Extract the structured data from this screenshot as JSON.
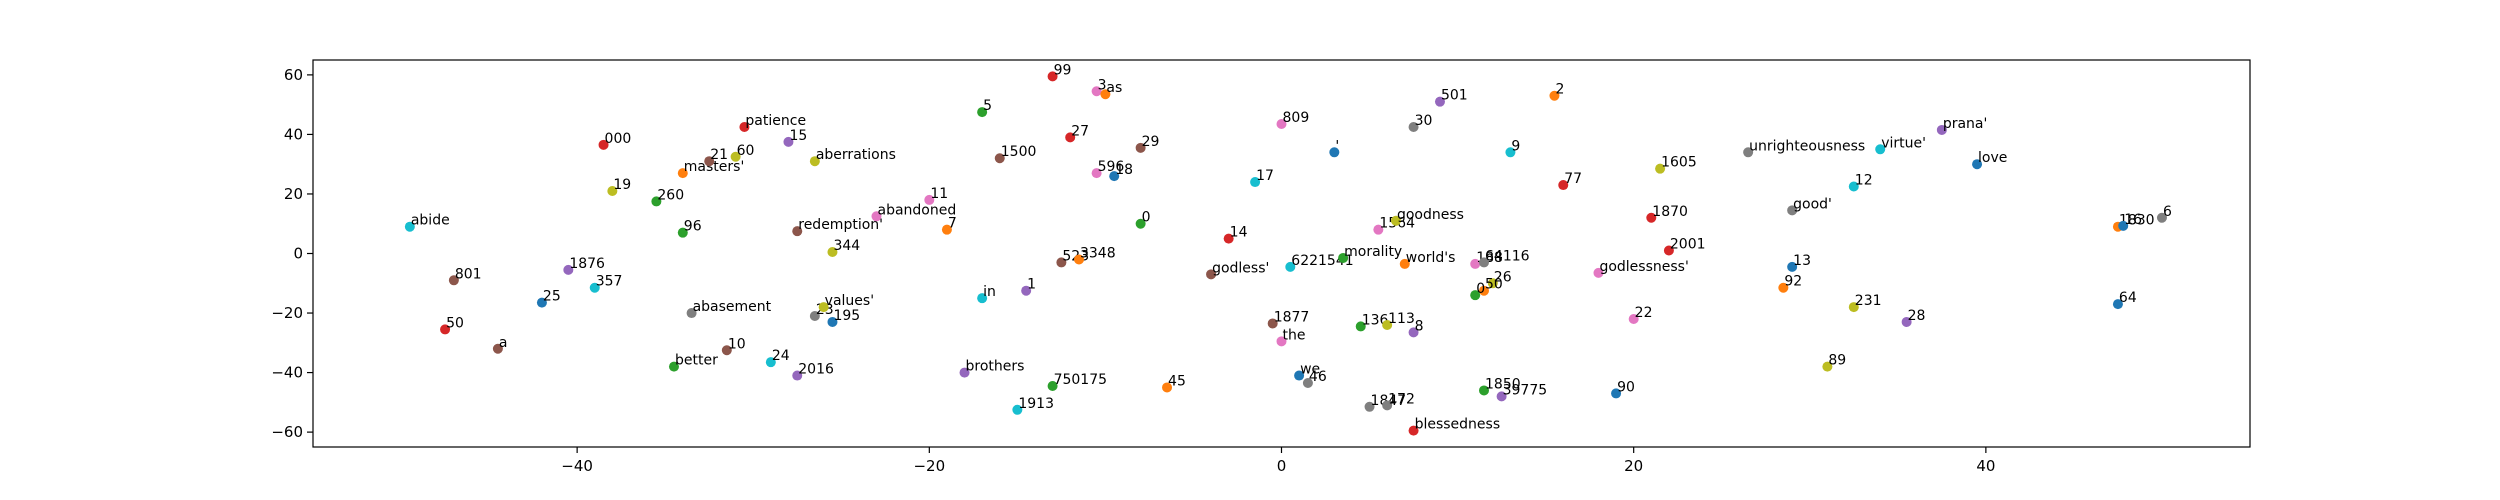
{
  "chart_data": {
    "type": "scatter",
    "title": "",
    "xlabel": "",
    "ylabel": "",
    "xlim": [
      -55,
      55
    ],
    "ylim": [
      -65,
      65
    ],
    "xticks": [
      "−40",
      "−20",
      "0",
      "20",
      "40"
    ],
    "xtick_values": [
      -40,
      -20,
      0,
      20,
      40
    ],
    "yticks": [
      "−60",
      "−40",
      "−20",
      "0",
      "20",
      "40",
      "60"
    ],
    "ytick_values": [
      -60,
      -40,
      -20,
      0,
      20,
      40,
      60
    ],
    "grid": false,
    "palette": [
      "#1f77b4",
      "#ff7f0e",
      "#2ca02c",
      "#d62728",
      "#9467bd",
      "#8c564b",
      "#e377c2",
      "#7f7f7f",
      "#bcbd22",
      "#17becf"
    ],
    "points": [
      {
        "label": "abide",
        "x": -49.5,
        "y": 9,
        "c": 9
      },
      {
        "label": "801",
        "x": -47,
        "y": -9,
        "c": 5
      },
      {
        "label": "50",
        "x": -47.5,
        "y": -25.5,
        "c": 3
      },
      {
        "label": "a",
        "x": -44.5,
        "y": -32,
        "c": 5
      },
      {
        "label": "25",
        "x": -42,
        "y": -16.5,
        "c": 0
      },
      {
        "label": "1876",
        "x": -40.5,
        "y": -5.5,
        "c": 4
      },
      {
        "label": "357",
        "x": -39,
        "y": -11.5,
        "c": 9
      },
      {
        "label": "000",
        "x": -38.5,
        "y": 36.5,
        "c": 3
      },
      {
        "label": "19",
        "x": -38,
        "y": 21,
        "c": 8
      },
      {
        "label": "260",
        "x": -35.5,
        "y": 17.5,
        "c": 2
      },
      {
        "label": "96",
        "x": -34,
        "y": 7,
        "c": 2
      },
      {
        "label": "masters'",
        "x": -34,
        "y": 27,
        "c": 1
      },
      {
        "label": "21",
        "x": -32.5,
        "y": 31,
        "c": 5
      },
      {
        "label": "abasement",
        "x": -33.5,
        "y": -20,
        "c": 7
      },
      {
        "label": "better",
        "x": -34.5,
        "y": -38,
        "c": 2
      },
      {
        "label": "60",
        "x": -31,
        "y": 32.5,
        "c": 8
      },
      {
        "label": "patience",
        "x": -30.5,
        "y": 42.5,
        "c": 3
      },
      {
        "label": "10",
        "x": -31.5,
        "y": -32.5,
        "c": 5
      },
      {
        "label": "15",
        "x": -28,
        "y": 37.5,
        "c": 4
      },
      {
        "label": "24",
        "x": -29,
        "y": -36.5,
        "c": 9
      },
      {
        "label": "2016",
        "x": -27.5,
        "y": -41,
        "c": 4
      },
      {
        "label": "redemption'",
        "x": -27.5,
        "y": 7.5,
        "c": 5
      },
      {
        "label": "aberrations",
        "x": -26.5,
        "y": 31,
        "c": 8
      },
      {
        "label": "23",
        "x": -26.5,
        "y": -21,
        "c": 7
      },
      {
        "label": "values'",
        "x": -26,
        "y": -18,
        "c": 8
      },
      {
        "label": "195",
        "x": -25.5,
        "y": -23,
        "c": 0
      },
      {
        "label": "344",
        "x": -25.5,
        "y": 0.5,
        "c": 8
      },
      {
        "label": "abandoned",
        "x": -23,
        "y": 12.5,
        "c": 6
      },
      {
        "label": "11",
        "x": -20,
        "y": 18,
        "c": 6
      },
      {
        "label": "7",
        "x": -19,
        "y": 8,
        "c": 1
      },
      {
        "label": "brothers",
        "x": -18,
        "y": -40,
        "c": 4
      },
      {
        "label": "5",
        "x": -17,
        "y": 47.5,
        "c": 2
      },
      {
        "label": "1500",
        "x": -16,
        "y": 32,
        "c": 5
      },
      {
        "label": "in",
        "x": -17,
        "y": -15,
        "c": 9
      },
      {
        "label": "1913",
        "x": -15,
        "y": -52.5,
        "c": 9
      },
      {
        "label": "1",
        "x": -14.5,
        "y": -12.5,
        "c": 4
      },
      {
        "label": "99",
        "x": -13,
        "y": 59.5,
        "c": 3
      },
      {
        "label": "750175",
        "x": -13,
        "y": -44.5,
        "c": 2
      },
      {
        "label": "523",
        "x": -12.5,
        "y": -3,
        "c": 5
      },
      {
        "label": "3348",
        "x": -11.5,
        "y": -2,
        "c": 1
      },
      {
        "label": "27",
        "x": -12,
        "y": 39,
        "c": 3
      },
      {
        "label": "3",
        "x": -10.5,
        "y": 54.5,
        "c": 6
      },
      {
        "label": "as",
        "x": -10,
        "y": 53.5,
        "c": 1
      },
      {
        "label": "596",
        "x": -10.5,
        "y": 27,
        "c": 6
      },
      {
        "label": "18",
        "x": -9.5,
        "y": 26,
        "c": 0
      },
      {
        "label": "29",
        "x": -8,
        "y": 35.5,
        "c": 5
      },
      {
        "label": "0",
        "x": -8,
        "y": 10,
        "c": 2
      },
      {
        "label": "45",
        "x": -6.5,
        "y": -45,
        "c": 1
      },
      {
        "label": "godless'",
        "x": -4,
        "y": -7,
        "c": 5
      },
      {
        "label": "14",
        "x": -3,
        "y": 5,
        "c": 3
      },
      {
        "label": "1877",
        "x": -0.5,
        "y": -23.5,
        "c": 5
      },
      {
        "label": "the",
        "x": 0,
        "y": -29.5,
        "c": 6
      },
      {
        "label": "809",
        "x": 0,
        "y": 43.5,
        "c": 6
      },
      {
        "label": "17",
        "x": -1.5,
        "y": 24,
        "c": 9
      },
      {
        "label": "6221541",
        "x": 0.5,
        "y": -4.5,
        "c": 9
      },
      {
        "label": "we",
        "x": 1,
        "y": -41,
        "c": 0
      },
      {
        "label": "46",
        "x": 1.5,
        "y": -43.5,
        "c": 7
      },
      {
        "label": "'",
        "x": 3,
        "y": 34,
        "c": 0
      },
      {
        "label": "morality",
        "x": 3.5,
        "y": -1.5,
        "c": 2
      },
      {
        "label": "136",
        "x": 4.5,
        "y": -24.5,
        "c": 2
      },
      {
        "label": "1847",
        "x": 5,
        "y": -51.5,
        "c": 7
      },
      {
        "label": "172",
        "x": 6,
        "y": -51,
        "c": 7
      },
      {
        "label": "113",
        "x": 6,
        "y": -24,
        "c": 8
      },
      {
        "label": "1564",
        "x": 5.5,
        "y": 8,
        "c": 6
      },
      {
        "label": "goodness",
        "x": 6.5,
        "y": 11,
        "c": 8
      },
      {
        "label": "world's",
        "x": 7,
        "y": -3.5,
        "c": 1
      },
      {
        "label": "8",
        "x": 7.5,
        "y": -26.5,
        "c": 4
      },
      {
        "label": "blessedness",
        "x": 7.5,
        "y": -59.5,
        "c": 3
      },
      {
        "label": "30",
        "x": 7.5,
        "y": 42.5,
        "c": 7
      },
      {
        "label": "501",
        "x": 9,
        "y": 51,
        "c": 4
      },
      {
        "label": "188",
        "x": 11,
        "y": -3.5,
        "c": 6
      },
      {
        "label": "64116",
        "x": 11.5,
        "y": -3,
        "c": 7
      },
      {
        "label": "26",
        "x": 12,
        "y": -10,
        "c": 8
      },
      {
        "label": "50",
        "x": 11.5,
        "y": -12.5,
        "c": 1
      },
      {
        "label": "0",
        "x": 11,
        "y": -14,
        "c": 2
      },
      {
        "label": "1850",
        "x": 11.5,
        "y": -46,
        "c": 2
      },
      {
        "label": "39775",
        "x": 12.5,
        "y": -48,
        "c": 4
      },
      {
        "label": "9",
        "x": 13,
        "y": 34,
        "c": 9
      },
      {
        "label": "2",
        "x": 15.5,
        "y": 53,
        "c": 1
      },
      {
        "label": "77",
        "x": 16,
        "y": 23,
        "c": 3
      },
      {
        "label": "godlessness'",
        "x": 18,
        "y": -6.5,
        "c": 6
      },
      {
        "label": "90",
        "x": 19,
        "y": -47,
        "c": 0
      },
      {
        "label": "22",
        "x": 20,
        "y": -22,
        "c": 6
      },
      {
        "label": "1605",
        "x": 21.5,
        "y": 28.5,
        "c": 8
      },
      {
        "label": "1870",
        "x": 21,
        "y": 12,
        "c": 3
      },
      {
        "label": "2001",
        "x": 22,
        "y": 1,
        "c": 3
      },
      {
        "label": "unrighteousness",
        "x": 26.5,
        "y": 34,
        "c": 7
      },
      {
        "label": "good'",
        "x": 29,
        "y": 14.5,
        "c": 7
      },
      {
        "label": "13",
        "x": 29,
        "y": -4.5,
        "c": 0
      },
      {
        "label": "92",
        "x": 28.5,
        "y": -11.5,
        "c": 1
      },
      {
        "label": "89",
        "x": 31,
        "y": -38,
        "c": 8
      },
      {
        "label": "12",
        "x": 32.5,
        "y": 22.5,
        "c": 9
      },
      {
        "label": "231",
        "x": 32.5,
        "y": -18,
        "c": 8
      },
      {
        "label": "virtue'",
        "x": 34,
        "y": 35,
        "c": 9
      },
      {
        "label": "28",
        "x": 35.5,
        "y": -23,
        "c": 4
      },
      {
        "label": "prana'",
        "x": 37.5,
        "y": 41.5,
        "c": 4
      },
      {
        "label": "love",
        "x": 39.5,
        "y": 30,
        "c": 0
      },
      {
        "label": "1830",
        "x": 47.5,
        "y": 9,
        "c": 1
      },
      {
        "label": "16",
        "x": 47.8,
        "y": 9.3,
        "c": 0
      },
      {
        "label": "6",
        "x": 50,
        "y": 12,
        "c": 7
      },
      {
        "label": "64",
        "x": 47.5,
        "y": -17,
        "c": 0
      }
    ]
  }
}
